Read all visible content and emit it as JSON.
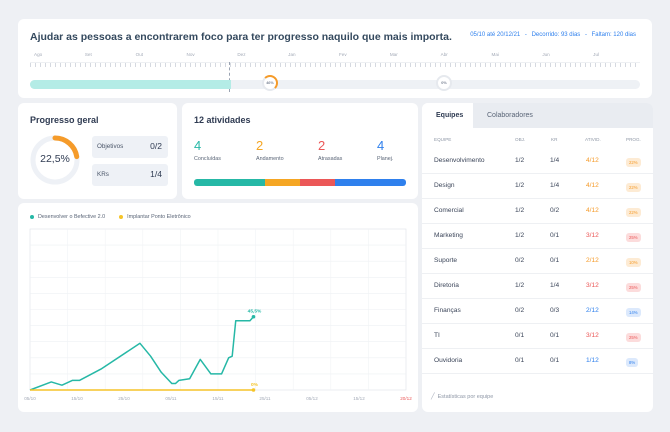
{
  "goal": {
    "title": "Ajudar as pessoas a encontrarem foco para ter progresso naquilo que mais importa.",
    "period": "05/10 até 20/12/21",
    "elapsed": "Decorrido: 93 dias",
    "remaining": "Faltam: 120 dias",
    "months": [
      "Ago",
      "Set",
      "Out",
      "Nov",
      "Dez",
      "Jan",
      "Fev",
      "Mar",
      "Abr",
      "Mai",
      "Jun",
      "Jul"
    ],
    "progress_fraction": 0.33,
    "marker_now": "46%",
    "marker_end": "0%",
    "colors": {
      "fill": "#b4ece6",
      "marker": "#f59b2a",
      "link": "#2f80ed"
    }
  },
  "general": {
    "title": "Progresso geral",
    "percent_label": "22,5%",
    "percent": 22.5,
    "objectives_label": "Objetivos",
    "objectives_value": "0/2",
    "krs_label": "KRs",
    "krs_value": "1/4",
    "color": "#f59b2a"
  },
  "activities": {
    "title": "12 atividades",
    "items": [
      {
        "count": "4",
        "label": "Concluídas",
        "color": "#26b8a6"
      },
      {
        "count": "2",
        "label": "Andamento",
        "color": "#f5a623"
      },
      {
        "count": "2",
        "label": "Atrasadas",
        "color": "#eb5757"
      },
      {
        "count": "4",
        "label": "Planej.",
        "color": "#2f80ed"
      }
    ]
  },
  "chart_data": {
    "type": "line",
    "x": [
      "05/10",
      "15/10",
      "25/10",
      "05/11",
      "15/11",
      "25/11",
      "05/12",
      "15/12",
      "20/12"
    ],
    "series": [
      {
        "name": "Desenvolver o Befective 2.0",
        "color": "#26b8a6",
        "points": [
          [
            0,
            0
          ],
          [
            6,
            5
          ],
          [
            9,
            3
          ],
          [
            12,
            6
          ],
          [
            14,
            6
          ],
          [
            20,
            13
          ],
          [
            31,
            29
          ],
          [
            34,
            21
          ],
          [
            37,
            11
          ],
          [
            40,
            4
          ],
          [
            41,
            4
          ],
          [
            42,
            6
          ],
          [
            45,
            7
          ],
          [
            48,
            19
          ],
          [
            51,
            10
          ],
          [
            54,
            10
          ],
          [
            56,
            20
          ],
          [
            57,
            21
          ],
          [
            58,
            43
          ],
          [
            62,
            43
          ],
          [
            63,
            45.5
          ]
        ],
        "end_label": "45,5%"
      },
      {
        "name": "Implantar Ponto Eletrônico",
        "color": "#f5c428",
        "points": [
          [
            0,
            0
          ],
          [
            63,
            0
          ]
        ],
        "end_label": "0%"
      }
    ],
    "x_today_label": "20/12",
    "ylim": [
      0,
      100
    ],
    "xlim": [
      0,
      106
    ],
    "grid": true
  },
  "teams": {
    "tab_active": "Equipes",
    "tab_inactive": "Colaboradores",
    "columns": [
      "EQUIPE",
      "OBJ.",
      "KR",
      "ATIVID.",
      "PROG."
    ],
    "rows": [
      {
        "name": "Desenvolvimento",
        "obj": "1/2",
        "kr": "1/4",
        "ativ": "4/12",
        "prog": "22%",
        "ativ_color": "#f59b2a",
        "badge_bg": "#fdebd4",
        "badge_fg": "#f59b2a"
      },
      {
        "name": "Design",
        "obj": "1/2",
        "kr": "1/4",
        "ativ": "4/12",
        "prog": "22%",
        "ativ_color": "#f59b2a",
        "badge_bg": "#fdebd4",
        "badge_fg": "#f59b2a"
      },
      {
        "name": "Comercial",
        "obj": "1/2",
        "kr": "0/2",
        "ativ": "4/12",
        "prog": "22%",
        "ativ_color": "#f59b2a",
        "badge_bg": "#fdebd4",
        "badge_fg": "#f59b2a"
      },
      {
        "name": "Marketing",
        "obj": "1/2",
        "kr": "0/1",
        "ativ": "3/12",
        "prog": "25%",
        "ativ_color": "#eb5757",
        "badge_bg": "#fcdcdc",
        "badge_fg": "#eb5757"
      },
      {
        "name": "Suporte",
        "obj": "0/2",
        "kr": "0/1",
        "ativ": "2/12",
        "prog": "10%",
        "ativ_color": "#f59b2a",
        "badge_bg": "#fdebd4",
        "badge_fg": "#f59b2a"
      },
      {
        "name": "Diretoria",
        "obj": "1/2",
        "kr": "1/4",
        "ativ": "3/12",
        "prog": "25%",
        "ativ_color": "#eb5757",
        "badge_bg": "#fcdcdc",
        "badge_fg": "#eb5757"
      },
      {
        "name": "Finanças",
        "obj": "0/2",
        "kr": "0/3",
        "ativ": "2/12",
        "prog": "14%",
        "ativ_color": "#2f80ed",
        "badge_bg": "#dce9fc",
        "badge_fg": "#2f80ed"
      },
      {
        "name": "TI",
        "obj": "0/1",
        "kr": "0/1",
        "ativ": "3/12",
        "prog": "25%",
        "ativ_color": "#eb5757",
        "badge_bg": "#fcdcdc",
        "badge_fg": "#eb5757"
      },
      {
        "name": "Ouvidoria",
        "obj": "0/1",
        "kr": "0/1",
        "ativ": "1/12",
        "prog": "8%",
        "ativ_color": "#2f80ed",
        "badge_bg": "#dce9fc",
        "badge_fg": "#2f80ed"
      }
    ],
    "footer": "Estatísticas por equipe"
  }
}
